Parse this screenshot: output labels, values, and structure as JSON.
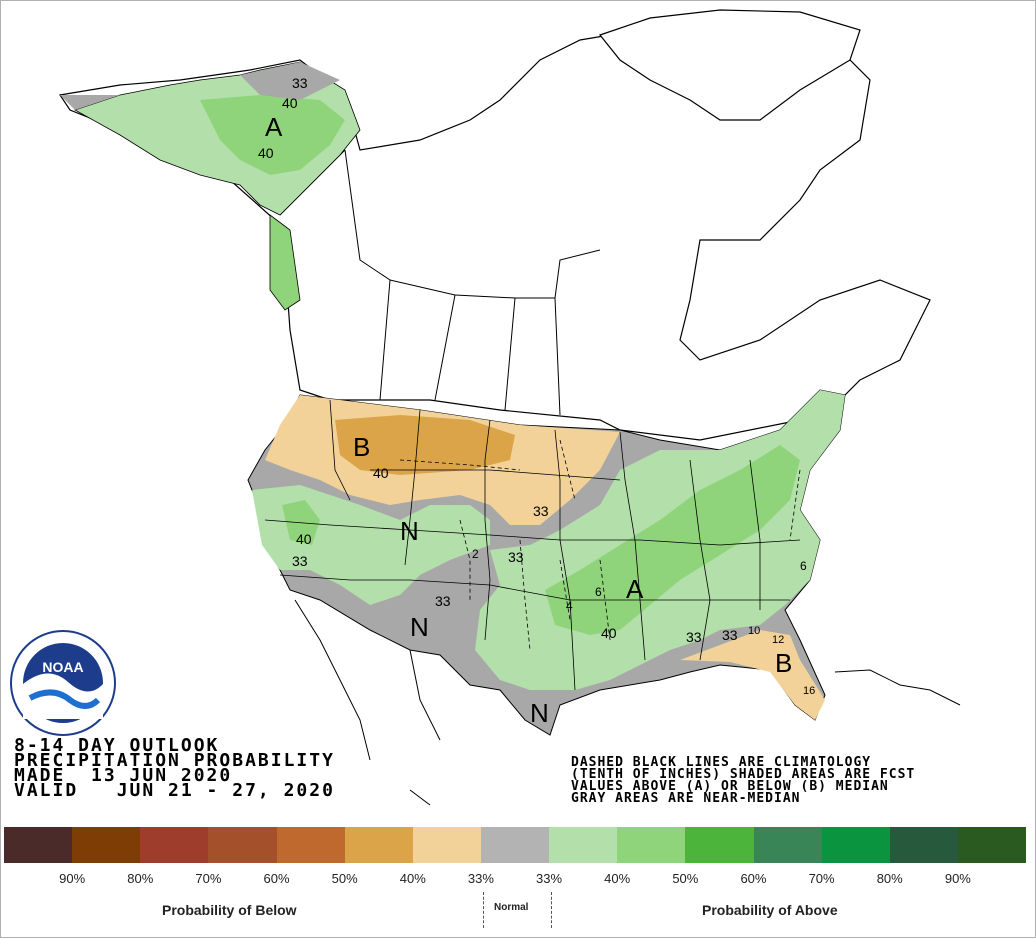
{
  "title": {
    "line1": "8-14 DAY OUTLOOK",
    "line2": "PRECIPITATION PROBABILITY",
    "line3": "MADE  13 JUN 2020",
    "line4": "VALID   JUN 21 - 27, 2020"
  },
  "notes": {
    "line1": "DASHED BLACK LINES ARE CLIMATOLOGY",
    "line2": "(TENTH OF INCHES) SHADED AREAS ARE FCST",
    "line3": "VALUES ABOVE (A) OR BELOW (B) MEDIAN",
    "line4": "GRAY AREAS ARE NEAR-MEDIAN"
  },
  "logo": {
    "text": "NOAA"
  },
  "map_labels": {
    "A": "A",
    "B": "B",
    "N": "N",
    "p33": "33",
    "p40": "40",
    "c2": "2",
    "c4": "4",
    "c6": "6",
    "c10": "10",
    "c12": "12",
    "c16": "16"
  },
  "legend": {
    "colors": [
      "#4b2a2a",
      "#7f3d06",
      "#9e3d2c",
      "#a3502b",
      "#c0692e",
      "#dca449",
      "#f2d298",
      "#b3b3b3",
      "#b3e0aa",
      "#8fd47a",
      "#4cb33b",
      "#3a8557",
      "#0a9440",
      "#275a3c",
      "#2a5a20"
    ],
    "ticks": [
      "90%",
      "80%",
      "70%",
      "60%",
      "50%",
      "40%",
      "33%",
      "33%",
      "40%",
      "50%",
      "60%",
      "70%",
      "80%",
      "90%"
    ],
    "below_label": "Probability of Below",
    "normal_label": "Normal",
    "above_label": "Probability of Above"
  },
  "colors": {
    "above_40": "#b3e0aa",
    "above_50": "#8fd47a",
    "below_33": "#f2d298",
    "below_40": "#dca449",
    "near_median": "#a8a8a8"
  }
}
